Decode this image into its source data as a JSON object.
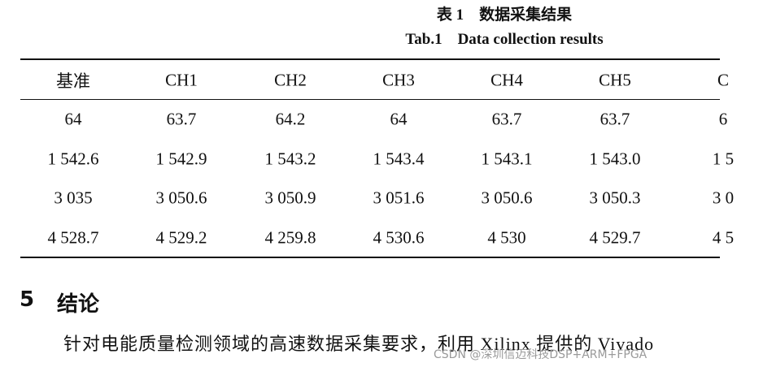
{
  "caption": {
    "title_cn": "表 1　数据采集结果",
    "title_en": "Tab.1　Data collection results"
  },
  "table": {
    "header": [
      "基准",
      "CH1",
      "CH2",
      "CH3",
      "CH4",
      "CH5",
      "C"
    ],
    "rows": [
      [
        "64",
        "63.7",
        "64.2",
        "64",
        "63.7",
        "63.7",
        "6"
      ],
      [
        "1 542.6",
        "1 542.9",
        "1 543.2",
        "1 543.4",
        "1 543.1",
        "1 543.0",
        "1 5"
      ],
      [
        "3 035",
        "3 050.6",
        "3 050.9",
        "3 051.6",
        "3 050.6",
        "3 050.3",
        "3 0"
      ],
      [
        "4 528.7",
        "4 529.2",
        "4 259.8",
        "4 530.6",
        "4 530",
        "4 529.7",
        "4 5"
      ]
    ]
  },
  "section": {
    "number": "5",
    "title": "结论"
  },
  "paragraph": "针对电能质量检测领域的高速数据采集要求，利用 Xilinx 提供的 Vivado",
  "watermark": "CSDN @深圳信迈科技DSP+ARM+FPGA"
}
